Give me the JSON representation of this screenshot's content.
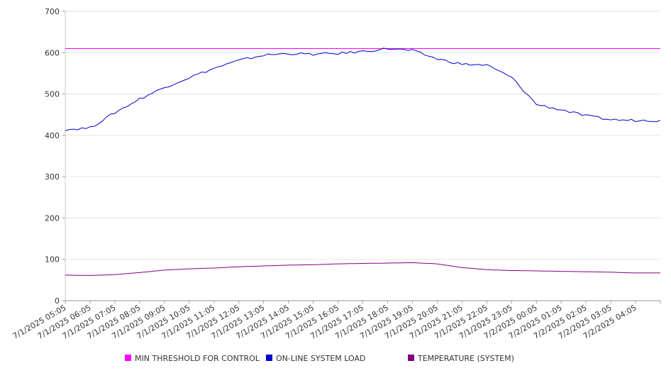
{
  "chart_data": {
    "type": "line",
    "title": "",
    "xlabel": "",
    "ylabel": "",
    "ylim": [
      0,
      700
    ],
    "yticks": [
      0,
      100,
      200,
      300,
      400,
      500,
      600,
      700
    ],
    "grid": true,
    "legend_position": "bottom-center",
    "categories": [
      "7/1/2025 05:05",
      "7/1/2025 06:05",
      "7/1/2025 07:05",
      "7/1/2025 08:05",
      "7/1/2025 09:05",
      "7/1/2025 10:05",
      "7/1/2025 11:05",
      "7/1/2025 12:05",
      "7/1/2025 13:05",
      "7/1/2025 14:05",
      "7/1/2025 15:05",
      "7/1/2025 16:05",
      "7/1/2025 17:05",
      "7/1/2025 18:05",
      "7/1/2025 19:05",
      "7/1/2025 20:05",
      "7/1/2025 21:05",
      "7/1/2025 22:05",
      "7/1/2025 23:05",
      "7/2/2025 00:05",
      "7/2/2025 01:05",
      "7/2/2025 02:05",
      "7/2/2025 03:05",
      "7/2/2025 04:05"
    ],
    "series": [
      {
        "name": "MIN THRESHOLD FOR CONTROL",
        "color": "#ff00ff",
        "values": [
          610,
          610,
          610,
          610,
          610,
          610,
          610,
          610,
          610,
          610,
          610,
          610,
          610,
          610,
          610,
          610,
          610,
          610,
          610,
          610,
          610,
          610,
          610,
          610
        ]
      },
      {
        "name": "ON-LINE SYSTEM LOAD",
        "color": "#0000cc",
        "values": [
          414,
          418,
          455,
          488,
          516,
          540,
          562,
          581,
          594,
          598,
          596,
          598,
          603,
          610,
          605,
          585,
          572,
          570,
          540,
          475,
          462,
          447,
          438,
          436
        ]
      },
      {
        "name": "TEMPERATURE (SYSTEM)",
        "color": "#800080",
        "values": [
          62,
          61,
          63,
          68,
          74,
          77,
          79,
          82,
          84,
          86,
          87,
          89,
          90,
          91,
          92,
          89,
          80,
          75,
          73,
          72,
          71,
          70,
          69,
          67
        ]
      }
    ]
  }
}
